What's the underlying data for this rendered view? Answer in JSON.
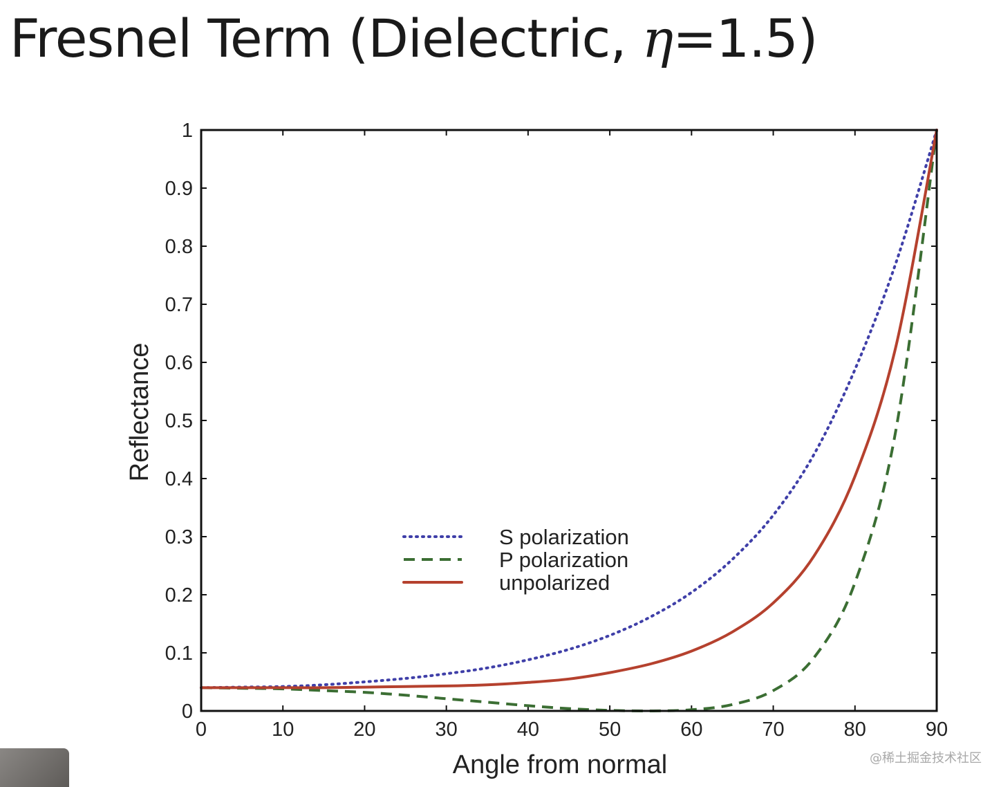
{
  "slide": {
    "title_prefix": "Fresnel Term (Dielectric, ",
    "title_eta": "η",
    "title_suffix": "=1.5)"
  },
  "watermark": "@稀土掘金技术社区",
  "chart_data": {
    "type": "line",
    "xlabel": "Angle from normal",
    "ylabel": "Reflectance",
    "xlim": [
      0,
      90
    ],
    "ylim": [
      0,
      1
    ],
    "x_ticks": [
      0,
      10,
      20,
      30,
      40,
      50,
      60,
      70,
      80,
      90
    ],
    "y_ticks": [
      0,
      0.1,
      0.2,
      0.3,
      0.4,
      0.5,
      0.6,
      0.7,
      0.8,
      0.9,
      1
    ],
    "y_tick_labels": [
      "0",
      "0.1",
      "0.2",
      "0.3",
      "0.4",
      "0.5",
      "0.6",
      "0.7",
      "0.8",
      "0.9",
      "1"
    ],
    "grid": false,
    "legend_position": "center",
    "x": [
      0,
      5,
      10,
      15,
      20,
      25,
      30,
      35,
      40,
      45,
      50,
      55,
      60,
      65,
      70,
      75,
      80,
      85,
      90
    ],
    "series": [
      {
        "name": "S polarization",
        "style": "dotted",
        "color": "#3f3fa8",
        "values": [
          0.04,
          0.041,
          0.042,
          0.045,
          0.05,
          0.056,
          0.064,
          0.074,
          0.088,
          0.106,
          0.13,
          0.162,
          0.204,
          0.261,
          0.337,
          0.442,
          0.588,
          0.771,
          1.0
        ]
      },
      {
        "name": "P polarization",
        "style": "dashed",
        "color": "#3b6e33",
        "values": [
          0.04,
          0.039,
          0.038,
          0.035,
          0.032,
          0.027,
          0.021,
          0.015,
          0.009,
          0.004,
          0.001,
          0.0,
          0.002,
          0.011,
          0.035,
          0.092,
          0.221,
          0.483,
          1.0
        ]
      },
      {
        "name": "unpolarized",
        "style": "solid",
        "color": "#b5412e",
        "values": [
          0.04,
          0.04,
          0.04,
          0.04,
          0.041,
          0.042,
          0.043,
          0.045,
          0.049,
          0.055,
          0.066,
          0.081,
          0.103,
          0.136,
          0.186,
          0.267,
          0.404,
          0.627,
          1.0
        ]
      }
    ]
  }
}
